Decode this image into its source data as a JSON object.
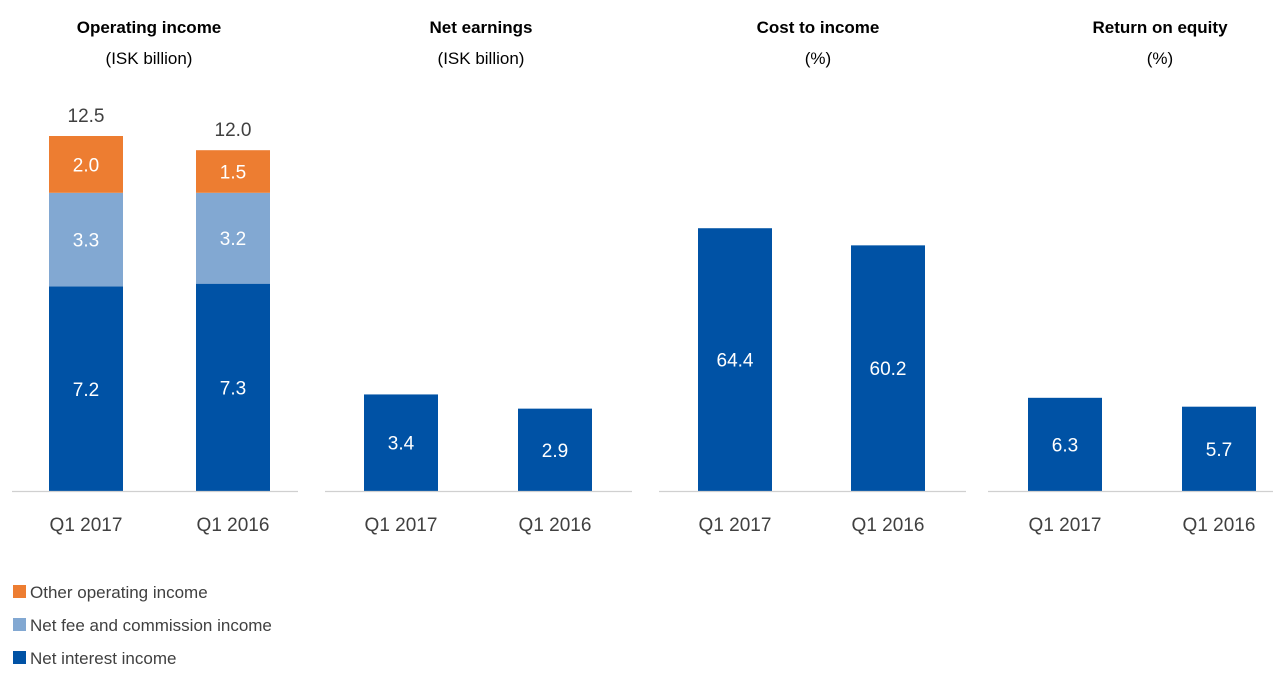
{
  "colors": {
    "net_interest": "#0052A5",
    "net_fee": "#82A8D2",
    "other_income": "#ED7D31",
    "axis": "#D0D0D0",
    "text": "#404040"
  },
  "chart_data": [
    {
      "type": "bar",
      "stacked": true,
      "title": "Operating income",
      "subtitle": "(ISK billion)",
      "categories": [
        "Q1 2017",
        "Q1 2016"
      ],
      "series": [
        {
          "name": "Net interest income",
          "values": [
            7.2,
            7.3
          ],
          "labels": [
            "7.2",
            "7.3"
          ]
        },
        {
          "name": "Net fee and commission income",
          "values": [
            3.3,
            3.2
          ],
          "labels": [
            "3.3",
            "3.2"
          ]
        },
        {
          "name": "Other operating income",
          "values": [
            2.0,
            1.5
          ],
          "labels": [
            "2.0",
            "1.5"
          ]
        }
      ],
      "totals": [
        "12.5",
        "12.0"
      ],
      "ylim": [
        0,
        12.5
      ]
    },
    {
      "type": "bar",
      "title": "Net earnings",
      "subtitle": "(ISK billion)",
      "categories": [
        "Q1 2017",
        "Q1 2016"
      ],
      "values": [
        3.4,
        2.9
      ],
      "labels": [
        "3.4",
        "2.9"
      ],
      "ylim": [
        0,
        12.5
      ]
    },
    {
      "type": "bar",
      "title": "Cost to income",
      "subtitle": "(%)",
      "categories": [
        "Q1 2017",
        "Q1 2016"
      ],
      "values": [
        64.4,
        60.2
      ],
      "labels": [
        "64.4",
        "60.2"
      ],
      "ylim": [
        0,
        87
      ]
    },
    {
      "type": "bar",
      "title": "Return on equity",
      "subtitle": "(%)",
      "categories": [
        "Q1 2017",
        "Q1 2016"
      ],
      "values": [
        6.3,
        5.7
      ],
      "labels": [
        "6.3",
        "5.7"
      ],
      "ylim": [
        0,
        24
      ]
    }
  ],
  "legend": [
    {
      "label": "Other operating income",
      "color_key": "other_income"
    },
    {
      "label": "Net fee and commission income",
      "color_key": "net_fee"
    },
    {
      "label": "Net interest income",
      "color_key": "net_interest"
    }
  ]
}
